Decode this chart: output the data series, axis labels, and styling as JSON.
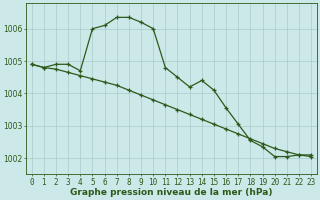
{
  "title": "Graphe pression niveau de la mer (hPa)",
  "bg_color": "#cce8e8",
  "grid_color": "#aacccc",
  "line_color": "#2d5a1b",
  "xlim": [
    -0.5,
    23.5
  ],
  "ylim": [
    1001.5,
    1006.8
  ],
  "yticks": [
    1002,
    1003,
    1004,
    1005,
    1006
  ],
  "xticks": [
    0,
    1,
    2,
    3,
    4,
    5,
    6,
    7,
    8,
    9,
    10,
    11,
    12,
    13,
    14,
    15,
    16,
    17,
    18,
    19,
    20,
    21,
    22,
    23
  ],
  "series1_x": [
    0,
    1,
    2,
    3,
    4,
    5,
    6,
    7,
    8,
    9,
    10,
    11,
    12,
    13,
    14,
    15,
    16,
    17,
    18,
    19,
    20,
    21,
    22,
    23
  ],
  "series1_y": [
    1004.9,
    1004.8,
    1004.9,
    1004.9,
    1004.7,
    1006.0,
    1006.1,
    1006.35,
    1006.35,
    1006.2,
    1006.0,
    1004.8,
    1004.5,
    1004.2,
    1004.4,
    1004.1,
    1003.55,
    1003.05,
    1002.55,
    1002.35,
    1002.05,
    1002.05,
    1002.1,
    1002.1
  ],
  "series2_x": [
    0,
    1,
    2,
    3,
    4,
    5,
    6,
    7,
    8,
    9,
    10,
    11,
    12,
    13,
    14,
    15,
    16,
    17,
    18,
    19,
    20,
    21,
    22,
    23
  ],
  "series2_y": [
    1004.9,
    1004.8,
    1004.75,
    1004.65,
    1004.55,
    1004.45,
    1004.35,
    1004.25,
    1004.1,
    1003.95,
    1003.8,
    1003.65,
    1003.5,
    1003.35,
    1003.2,
    1003.05,
    1002.9,
    1002.75,
    1002.6,
    1002.45,
    1002.3,
    1002.2,
    1002.1,
    1002.05
  ],
  "marker": "+",
  "marker_size": 3,
  "linewidth": 0.9,
  "tick_fontsize": 5.5,
  "label_fontsize": 6.5
}
